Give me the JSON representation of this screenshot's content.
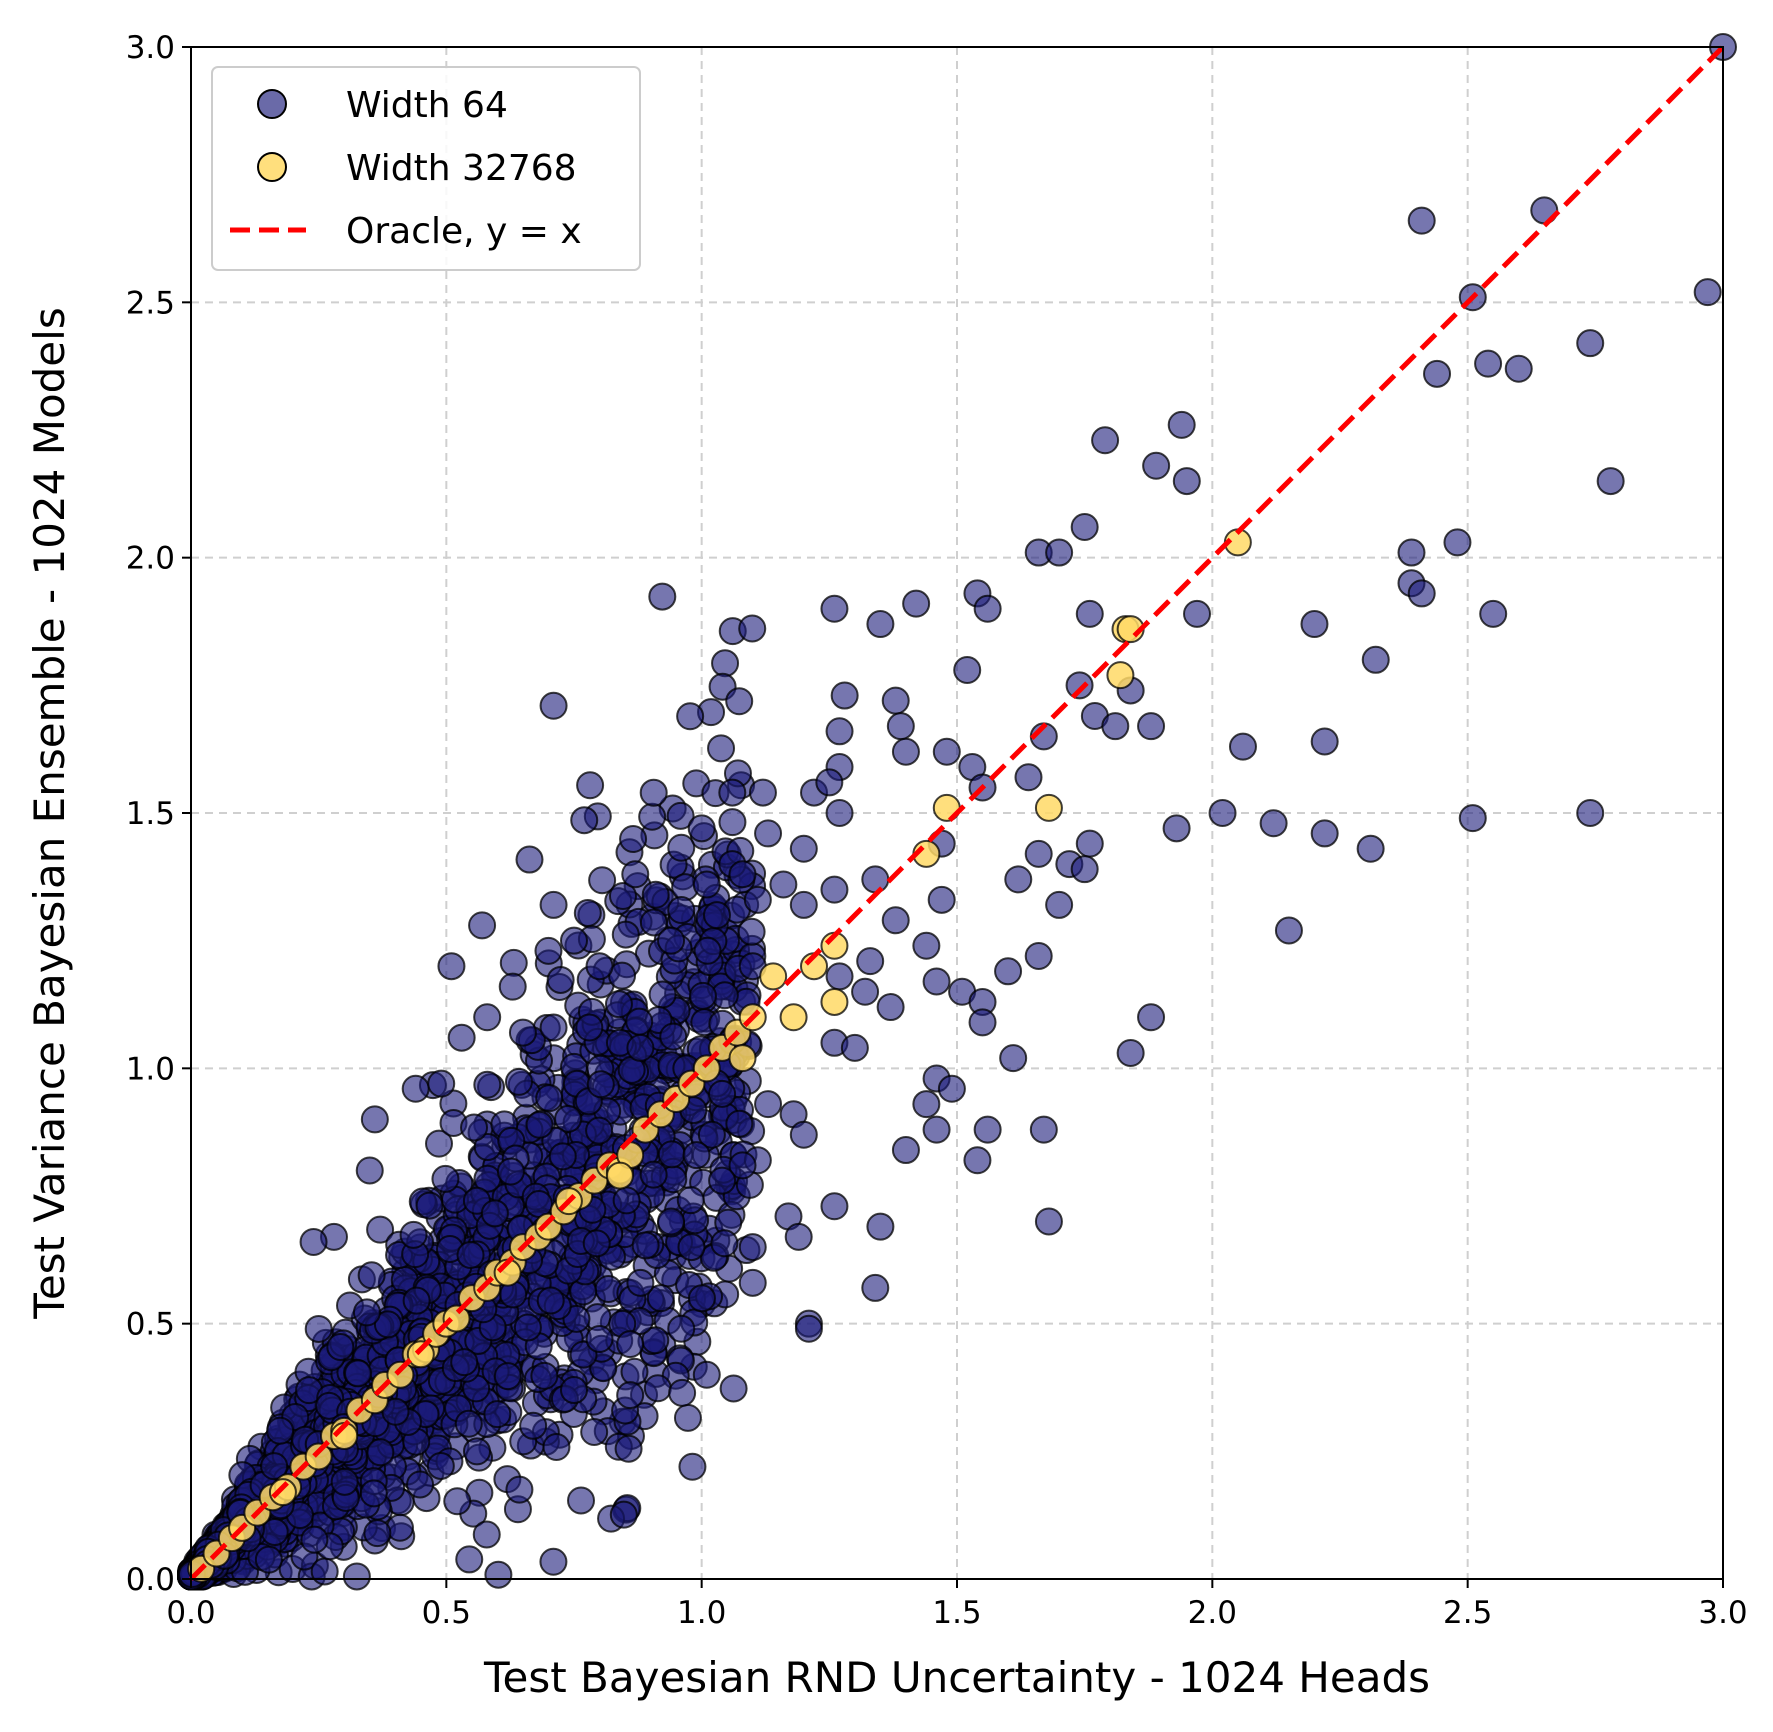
{
  "chart_data": {
    "type": "scatter",
    "xlabel": "Test Bayesian RND Uncertainty - 1024 Heads",
    "ylabel": "Test Variance Bayesian Ensemble - 1024 Models",
    "xlim": [
      0,
      3.0
    ],
    "ylim": [
      0,
      3.0
    ],
    "xticks": [
      "0.0",
      "0.5",
      "1.0",
      "1.5",
      "2.0",
      "2.5",
      "3.0"
    ],
    "yticks": [
      "0.0",
      "0.5",
      "1.0",
      "1.5",
      "2.0",
      "2.5",
      "3.0"
    ],
    "grid": true,
    "legend_position": "top-left",
    "series": [
      {
        "name": "Width 64",
        "color": "#1a1a7a",
        "edgecolor": "#000000",
        "outliers": [
          [
            3.0,
            3.0
          ],
          [
            2.97,
            2.52
          ],
          [
            2.65,
            2.68
          ],
          [
            2.41,
            2.66
          ],
          [
            2.51,
            2.51
          ],
          [
            2.74,
            2.42
          ],
          [
            2.44,
            2.36
          ],
          [
            2.54,
            2.38
          ],
          [
            2.6,
            2.37
          ],
          [
            2.78,
            2.15
          ],
          [
            1.94,
            2.26
          ],
          [
            1.79,
            2.23
          ],
          [
            1.89,
            2.18
          ],
          [
            1.95,
            2.15
          ],
          [
            1.75,
            2.06
          ],
          [
            1.66,
            2.01
          ],
          [
            1.7,
            2.01
          ],
          [
            2.48,
            2.03
          ],
          [
            2.39,
            2.01
          ],
          [
            2.39,
            1.95
          ],
          [
            2.41,
            1.93
          ],
          [
            1.97,
            1.89
          ],
          [
            2.2,
            1.87
          ],
          [
            2.55,
            1.89
          ],
          [
            1.26,
            1.9
          ],
          [
            1.42,
            1.91
          ],
          [
            1.54,
            1.93
          ],
          [
            1.35,
            1.87
          ],
          [
            1.56,
            1.9
          ],
          [
            1.76,
            1.89
          ],
          [
            2.32,
            1.8
          ],
          [
            1.52,
            1.78
          ],
          [
            1.74,
            1.75
          ],
          [
            1.84,
            1.74
          ],
          [
            1.28,
            1.73
          ],
          [
            1.38,
            1.72
          ],
          [
            1.77,
            1.69
          ],
          [
            1.39,
            1.67
          ],
          [
            1.81,
            1.67
          ],
          [
            1.88,
            1.67
          ],
          [
            1.27,
            1.66
          ],
          [
            1.4,
            1.62
          ],
          [
            1.48,
            1.62
          ],
          [
            1.53,
            1.59
          ],
          [
            2.06,
            1.63
          ],
          [
            2.22,
            1.64
          ],
          [
            1.27,
            1.59
          ],
          [
            1.55,
            1.55
          ],
          [
            1.64,
            1.57
          ],
          [
            1.67,
            1.65
          ],
          [
            0.71,
            1.71
          ],
          [
            1.06,
            1.54
          ],
          [
            1.12,
            1.54
          ],
          [
            1.22,
            1.54
          ],
          [
            1.27,
            1.5
          ],
          [
            1.25,
            1.56
          ],
          [
            2.02,
            1.5
          ],
          [
            2.51,
            1.49
          ],
          [
            2.74,
            1.5
          ],
          [
            1.93,
            1.47
          ],
          [
            2.12,
            1.48
          ],
          [
            2.22,
            1.46
          ],
          [
            2.31,
            1.43
          ],
          [
            1.0,
            1.47
          ],
          [
            1.13,
            1.46
          ],
          [
            1.2,
            1.43
          ],
          [
            1.47,
            1.44
          ],
          [
            1.66,
            1.42
          ],
          [
            1.76,
            1.44
          ],
          [
            1.72,
            1.4
          ],
          [
            1.75,
            1.39
          ],
          [
            1.62,
            1.37
          ],
          [
            1.06,
            1.4
          ],
          [
            1.08,
            1.38
          ],
          [
            0.87,
            1.38
          ],
          [
            1.16,
            1.36
          ],
          [
            1.34,
            1.37
          ],
          [
            1.01,
            1.36
          ],
          [
            1.26,
            1.35
          ],
          [
            0.91,
            1.34
          ],
          [
            1.11,
            1.33
          ],
          [
            1.2,
            1.32
          ],
          [
            1.7,
            1.32
          ],
          [
            1.47,
            1.33
          ],
          [
            0.71,
            1.32
          ],
          [
            0.96,
            1.31
          ],
          [
            1.03,
            1.3
          ],
          [
            1.38,
            1.29
          ],
          [
            1.44,
            1.24
          ],
          [
            2.15,
            1.27
          ],
          [
            0.57,
            1.28
          ],
          [
            0.75,
            1.25
          ],
          [
            0.94,
            1.25
          ],
          [
            1.1,
            1.2
          ],
          [
            1.33,
            1.21
          ],
          [
            1.6,
            1.19
          ],
          [
            1.66,
            1.22
          ],
          [
            0.51,
            1.2
          ],
          [
            0.8,
            1.2
          ],
          [
            1.46,
            1.17
          ],
          [
            1.51,
            1.15
          ],
          [
            1.55,
            1.13
          ],
          [
            1.37,
            1.12
          ],
          [
            1.32,
            1.15
          ],
          [
            1.27,
            1.18
          ],
          [
            1.55,
            1.09
          ],
          [
            1.88,
            1.1
          ],
          [
            0.53,
            1.06
          ],
          [
            1.84,
            1.03
          ],
          [
            1.61,
            1.02
          ],
          [
            1.26,
            1.05
          ],
          [
            1.3,
            1.04
          ],
          [
            0.44,
            0.96
          ],
          [
            0.49,
            0.97
          ],
          [
            1.46,
            0.98
          ],
          [
            1.49,
            0.96
          ],
          [
            1.44,
            0.93
          ],
          [
            1.13,
            0.93
          ],
          [
            1.18,
            0.91
          ],
          [
            1.2,
            0.87
          ],
          [
            1.46,
            0.88
          ],
          [
            1.56,
            0.88
          ],
          [
            1.67,
            0.88
          ],
          [
            1.4,
            0.84
          ],
          [
            1.54,
            0.82
          ],
          [
            1.11,
            0.82
          ],
          [
            1.08,
            0.81
          ],
          [
            0.36,
            0.9
          ],
          [
            0.35,
            0.8
          ],
          [
            1.17,
            0.71
          ],
          [
            1.26,
            0.73
          ],
          [
            1.35,
            0.69
          ],
          [
            1.68,
            0.7
          ],
          [
            1.19,
            0.67
          ],
          [
            1.1,
            0.65
          ],
          [
            1.1,
            0.58
          ],
          [
            1.34,
            0.57
          ],
          [
            1.21,
            0.5
          ],
          [
            1.21,
            0.49
          ],
          [
            0.96,
            0.49
          ],
          [
            1.01,
            0.4
          ],
          [
            0.86,
            0.46
          ],
          [
            0.85,
            0.33
          ],
          [
            0.86,
            0.36
          ],
          [
            0.92,
            0.55
          ],
          [
            0.28,
            0.67
          ],
          [
            0.24,
            0.66
          ],
          [
            0.7,
            1.23
          ],
          [
            0.63,
            1.16
          ],
          [
            0.58,
            1.1
          ],
          [
            0.65,
            1.07
          ],
          [
            0.71,
            1.08
          ],
          [
            0.78,
            1.08
          ],
          [
            0.84,
            1.05
          ],
          [
            0.88,
            1.04
          ],
          [
            0.97,
            1.0
          ],
          [
            1.04,
            0.95
          ],
          [
            1.02,
            0.87
          ],
          [
            0.99,
            0.83
          ],
          [
            1.04,
            0.78
          ],
          [
            0.94,
            0.7
          ],
          [
            0.98,
            0.65
          ],
          [
            0.88,
            0.58
          ],
          [
            0.8,
            0.47
          ],
          [
            0.67,
            0.3
          ],
          [
            0.75,
            0.37
          ],
          [
            0.56,
            0.25
          ]
        ],
        "bulk": {
          "description": "dense cloud along diagonal, ~8000 points for x,y in [0,1.1]",
          "x_range": [
            0.0,
            1.1
          ],
          "spread": 0.5
        }
      },
      {
        "name": "Width 32768",
        "color": "#ffd966",
        "edgecolor": "#000000",
        "points": [
          [
            0.02,
            0.02
          ],
          [
            0.05,
            0.05
          ],
          [
            0.08,
            0.08
          ],
          [
            0.1,
            0.1
          ],
          [
            0.13,
            0.13
          ],
          [
            0.16,
            0.16
          ],
          [
            0.19,
            0.18
          ],
          [
            0.22,
            0.22
          ],
          [
            0.25,
            0.24
          ],
          [
            0.28,
            0.28
          ],
          [
            0.3,
            0.29
          ],
          [
            0.33,
            0.33
          ],
          [
            0.36,
            0.35
          ],
          [
            0.38,
            0.38
          ],
          [
            0.41,
            0.4
          ],
          [
            0.44,
            0.44
          ],
          [
            0.46,
            0.45
          ],
          [
            0.48,
            0.48
          ],
          [
            0.5,
            0.5
          ],
          [
            0.52,
            0.51
          ],
          [
            0.55,
            0.55
          ],
          [
            0.58,
            0.57
          ],
          [
            0.6,
            0.6
          ],
          [
            0.63,
            0.62
          ],
          [
            0.65,
            0.65
          ],
          [
            0.68,
            0.67
          ],
          [
            0.7,
            0.69
          ],
          [
            0.73,
            0.72
          ],
          [
            0.76,
            0.75
          ],
          [
            0.79,
            0.78
          ],
          [
            0.82,
            0.81
          ],
          [
            0.84,
            0.8
          ],
          [
            0.86,
            0.83
          ],
          [
            0.89,
            0.88
          ],
          [
            0.92,
            0.91
          ],
          [
            0.95,
            0.94
          ],
          [
            0.98,
            0.97
          ],
          [
            1.01,
            1.0
          ],
          [
            1.04,
            1.04
          ],
          [
            1.07,
            1.07
          ],
          [
            1.1,
            1.1
          ],
          [
            1.14,
            1.18
          ],
          [
            1.18,
            1.1
          ],
          [
            1.22,
            1.2
          ],
          [
            1.26,
            1.24
          ],
          [
            1.26,
            1.13
          ],
          [
            1.08,
            1.02
          ],
          [
            1.44,
            1.42
          ],
          [
            1.48,
            1.51
          ],
          [
            1.68,
            1.51
          ],
          [
            1.83,
            1.86
          ],
          [
            1.84,
            1.86
          ],
          [
            1.82,
            1.77
          ],
          [
            2.05,
            2.03
          ],
          [
            0.84,
            0.79
          ],
          [
            0.74,
            0.74
          ],
          [
            0.62,
            0.6
          ],
          [
            0.45,
            0.44
          ],
          [
            0.3,
            0.28
          ],
          [
            0.18,
            0.17
          ]
        ]
      },
      {
        "name": "Oracle, y = x",
        "color": "#ff0000",
        "style": "dashed",
        "x": [
          0,
          3.0
        ],
        "y": [
          0,
          3.0
        ]
      }
    ]
  }
}
